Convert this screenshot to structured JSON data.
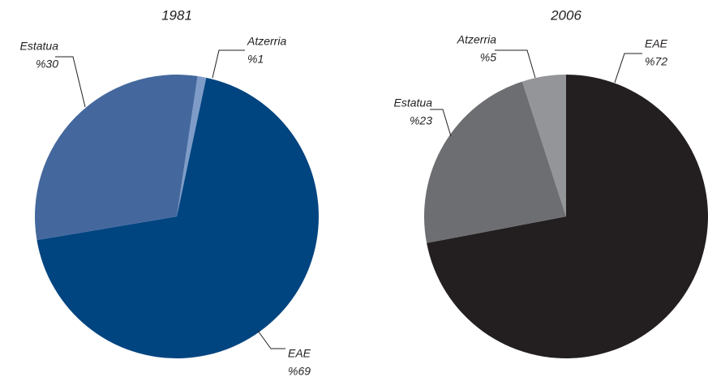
{
  "chart_data": [
    {
      "type": "pie",
      "title": "1981",
      "categories": [
        "Atzerria",
        "EAE",
        "Estatua"
      ],
      "values": [
        1,
        69,
        30
      ],
      "value_labels": [
        "%1",
        "%69",
        "%30"
      ],
      "colors": [
        "#7f9cc9",
        "#004480",
        "#44689d"
      ]
    },
    {
      "type": "pie",
      "title": "2006",
      "categories": [
        "EAE",
        "Estatua",
        "Atzerria"
      ],
      "values": [
        72,
        23,
        5
      ],
      "value_labels": [
        "%72",
        "%23",
        "%5"
      ],
      "colors": [
        "#231f20",
        "#6d6e71",
        "#939598"
      ]
    }
  ]
}
